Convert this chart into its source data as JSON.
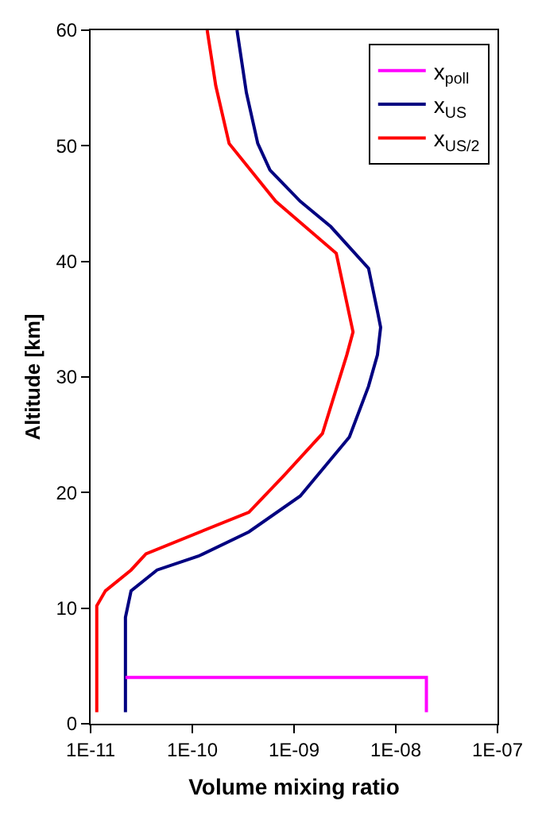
{
  "chart_data": {
    "type": "line",
    "xlabel": "Volume mixing ratio",
    "ylabel": "Altitude [km]",
    "log": "x",
    "xlim": [
      1e-11,
      1e-07
    ],
    "ylim": [
      0,
      60
    ],
    "xticks": [
      {
        "value": 1e-11,
        "label": "1E-11"
      },
      {
        "value": 1e-10,
        "label": "1E-10"
      },
      {
        "value": 1e-09,
        "label": "1E-09"
      },
      {
        "value": 1e-08,
        "label": "1E-08"
      },
      {
        "value": 1e-07,
        "label": "1E-07"
      }
    ],
    "yticks": [
      0,
      10,
      20,
      30,
      40,
      50,
      60
    ],
    "grid": false,
    "legend": "top right",
    "marker": "none",
    "line_style": "solid",
    "series": [
      {
        "name": "x$_{poll}$",
        "color": "#ff00ff",
        "x": [
          2.2e-11,
          2e-08,
          2e-08
        ],
        "values": [
          4,
          4,
          1
        ]
      },
      {
        "name": "x$_{US}$",
        "color": "#000080",
        "x": [
          2.2e-11,
          2.2e-11,
          2.5e-11,
          4.5e-11,
          1.15e-10,
          3.6e-10,
          1.15e-09,
          3.5e-09,
          5.4e-09,
          6.6e-09,
          7.1e-09,
          6.6e-09,
          5.4e-09,
          2.3e-09,
          1.15e-09,
          5.8e-10,
          4.4e-10,
          3.4e-10,
          2.75e-10
        ],
        "values": [
          1,
          9.2,
          11.5,
          13.3,
          14.5,
          16.6,
          19.7,
          24.8,
          29.2,
          31.9,
          34.3,
          35.7,
          39.4,
          43,
          45.2,
          47.9,
          50.2,
          54.6,
          60
        ]
      },
      {
        "name": "x$_{US/2}$",
        "color": "#ff0000",
        "x": [
          1.15e-11,
          1.15e-11,
          1.4e-11,
          2.5e-11,
          3.5e-11,
          3.6e-10,
          8e-10,
          1.9e-09,
          3.3e-09,
          3.8e-09,
          2.6e-09,
          6.6e-10,
          2.3e-10,
          1.7e-10,
          1.4e-10
        ],
        "values": [
          1,
          10.2,
          11.5,
          13.3,
          14.7,
          18.3,
          21.5,
          25.1,
          31.9,
          33.9,
          40.7,
          45.2,
          50.2,
          55.2,
          60
        ]
      }
    ]
  }
}
